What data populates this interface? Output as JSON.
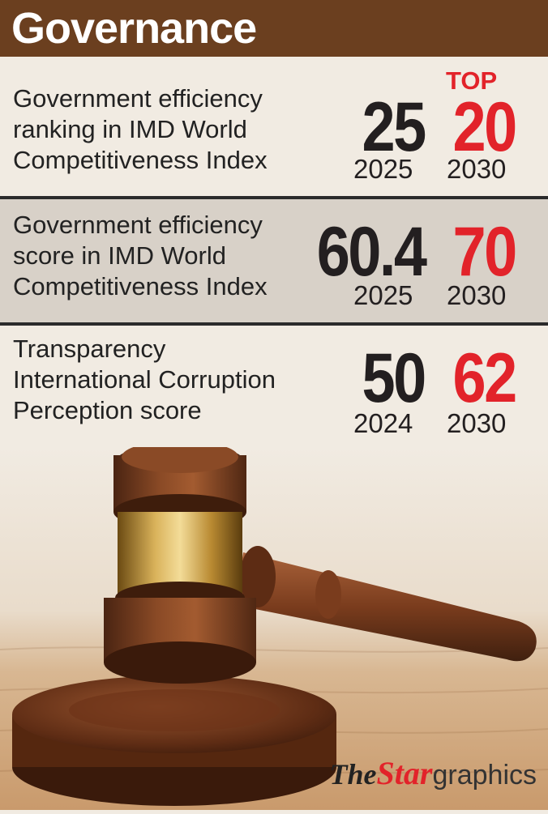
{
  "header": {
    "title": "Governance"
  },
  "rows": [
    {
      "description": [
        "Government efficiency",
        "ranking in IMD World",
        "Competitiveness Index"
      ],
      "current_value": "25",
      "current_year": "2025",
      "target_label": "TOP",
      "target_value": "20",
      "target_year": "2030"
    },
    {
      "description": [
        "Government efficiency",
        "score in IMD World",
        "Competitiveness Index"
      ],
      "current_value": "60.4",
      "current_year": "2025",
      "target_value": "70",
      "target_year": "2030"
    },
    {
      "description": [
        "Transparency",
        "International Corruption",
        "Perception score"
      ],
      "current_value": "50",
      "current_year": "2024",
      "target_value": "62",
      "target_year": "2030"
    }
  ],
  "logo": {
    "the": "The",
    "star": "Star",
    "graphics": "graphics"
  },
  "colors": {
    "header": "#6b3f1f",
    "accent": "#e2232a",
    "text": "#231f20"
  }
}
